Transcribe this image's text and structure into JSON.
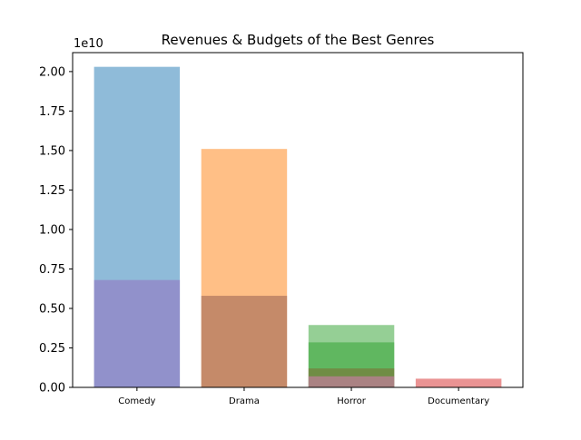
{
  "chart_data": {
    "type": "bar",
    "title": "Revenues & Budgets of the Best Genres",
    "xlabel": "",
    "ylabel": "",
    "y_offset_label": "1e10",
    "ylim": [
      0,
      2.12
    ],
    "yticks": [
      "0.00",
      "0.25",
      "0.50",
      "0.75",
      "1.00",
      "1.25",
      "1.50",
      "1.75",
      "2.00"
    ],
    "categories": [
      "Comedy",
      "Drama",
      "Horror",
      "Documentary"
    ],
    "grid": false,
    "legend": "none",
    "series": [
      {
        "color": "#1f77b4",
        "alpha": 0.5,
        "values": [
          2.03,
          0,
          0,
          0
        ]
      },
      {
        "color": "#ff7f0e",
        "alpha": 0.5,
        "values": [
          0,
          1.51,
          0,
          0
        ]
      },
      {
        "color": "#2ca02c",
        "alpha": 0.5,
        "values": [
          0,
          0,
          0.395,
          0
        ]
      },
      {
        "color": "#d62728",
        "alpha": 0.5,
        "values": [
          0,
          0,
          0.12,
          0.055
        ]
      },
      {
        "color": "#9467bd",
        "alpha": 0.5,
        "values": [
          0.68,
          0,
          0,
          0
        ]
      },
      {
        "color": "#8c564b",
        "alpha": 0.5,
        "values": [
          0,
          0.58,
          0,
          0
        ]
      },
      {
        "color": "#2ca02c",
        "alpha": 0.5,
        "values": [
          0,
          0,
          0.285,
          0
        ]
      },
      {
        "color": "#e377c2",
        "alpha": 0.5,
        "values": [
          0,
          0,
          0.07,
          0
        ]
      }
    ]
  }
}
